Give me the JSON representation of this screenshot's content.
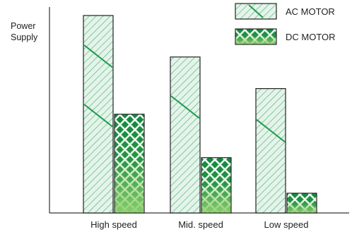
{
  "chart_data": {
    "type": "bar",
    "ylabel": "Power Supply",
    "xlabel": "",
    "categories": [
      "High speed",
      "Mid. speed",
      "Low speed"
    ],
    "series": [
      {
        "name": "AC MOTOR",
        "values": [
          100,
          79,
          63
        ],
        "pattern": "diagonal-lines"
      },
      {
        "name": "DC MOTOR",
        "values": [
          50,
          28,
          10
        ],
        "pattern": "lattice"
      }
    ],
    "ylim": [
      0,
      105
    ],
    "y_ticks_shown": false,
    "grid": false,
    "legend": "top-right"
  },
  "colors": {
    "ac_fill": "#e4f4ea",
    "ac_stripe": "#52b074",
    "ac_accent": "#1f9a4e",
    "dc_dark": "#13893e",
    "dc_light": "#8ed06e",
    "lattice": "#ffffff",
    "outline": "#222222",
    "axis": "#333333"
  }
}
